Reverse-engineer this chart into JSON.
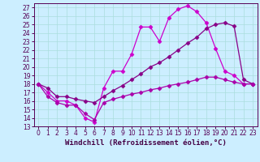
{
  "xlabel": "Windchill (Refroidissement éolien,°C)",
  "background_color": "#cceeff",
  "line1_color": "#cc00cc",
  "line2_color": "#880088",
  "line3_color": "#aa00aa",
  "xlim": [
    -0.5,
    23.5
  ],
  "ylim": [
    13,
    27.5
  ],
  "yticks": [
    13,
    14,
    15,
    16,
    17,
    18,
    19,
    20,
    21,
    22,
    23,
    24,
    25,
    26,
    27
  ],
  "xticks": [
    0,
    1,
    2,
    3,
    4,
    5,
    6,
    7,
    8,
    9,
    10,
    11,
    12,
    13,
    14,
    15,
    16,
    17,
    18,
    19,
    20,
    21,
    22,
    23
  ],
  "line1_x": [
    0,
    1,
    2,
    3,
    4,
    5,
    6,
    7,
    8,
    9,
    10,
    11,
    12,
    13,
    14,
    15,
    16,
    17,
    18,
    19,
    20,
    21,
    22,
    23
  ],
  "line1_y": [
    18,
    17,
    16,
    16,
    15.5,
    14,
    13.5,
    17.5,
    19.5,
    19.5,
    21.5,
    24.7,
    24.7,
    23.0,
    25.8,
    26.8,
    27.2,
    26.5,
    25.2,
    22.2,
    19.5,
    19.0,
    18.0,
    18.0
  ],
  "line2_x": [
    0,
    1,
    2,
    3,
    4,
    5,
    6,
    7,
    8,
    9,
    10,
    11,
    12,
    13,
    14,
    15,
    16,
    17,
    18,
    19,
    20,
    21,
    22,
    23
  ],
  "line2_y": [
    18,
    17.5,
    16.5,
    16.5,
    16.2,
    16.0,
    15.8,
    16.5,
    17.2,
    17.8,
    18.5,
    19.2,
    20.0,
    20.5,
    21.2,
    22.0,
    22.8,
    23.5,
    24.5,
    25.0,
    25.2,
    24.8,
    18.5,
    18.0
  ],
  "line3_x": [
    0,
    1,
    2,
    3,
    4,
    5,
    6,
    7,
    8,
    9,
    10,
    11,
    12,
    13,
    14,
    15,
    16,
    17,
    18,
    19,
    20,
    21,
    22,
    23
  ],
  "line3_y": [
    18,
    16.5,
    15.8,
    15.5,
    15.5,
    14.5,
    13.8,
    15.8,
    16.2,
    16.5,
    16.8,
    17.0,
    17.3,
    17.5,
    17.8,
    18.0,
    18.2,
    18.5,
    18.8,
    18.8,
    18.5,
    18.2,
    18.0,
    18.0
  ],
  "markersize": 2.5,
  "linewidth": 0.9,
  "grid_color": "#aadddd",
  "tick_fontsize": 5.5,
  "label_fontsize": 6.5
}
